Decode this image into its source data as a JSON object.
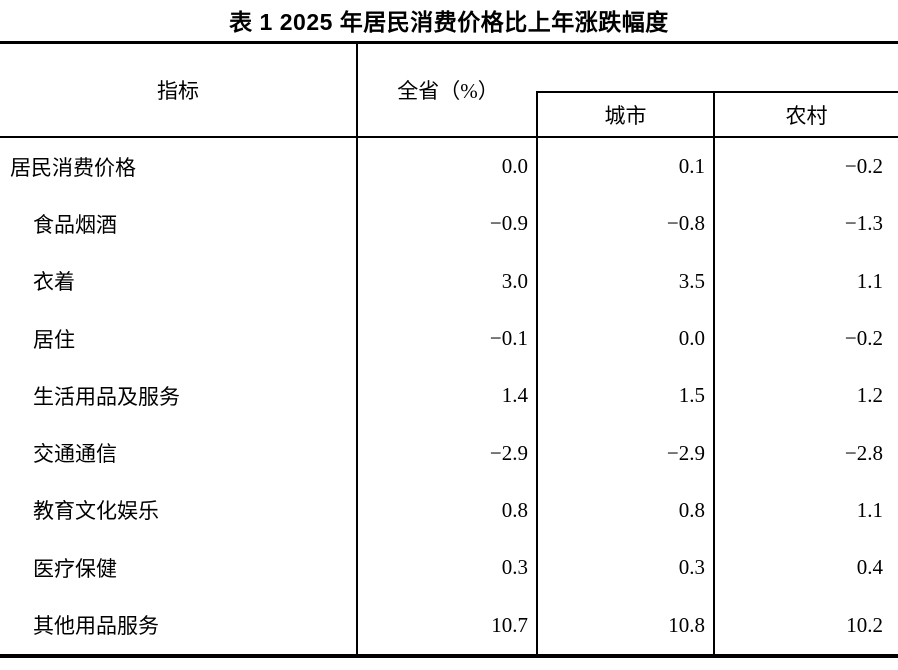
{
  "title": "表 1 2025 年居民消费价格比上年涨跌幅度",
  "table": {
    "headers": {
      "indicator": "指标",
      "province": "全省（%）",
      "city": "城市",
      "rural": "农村"
    },
    "rows": [
      {
        "label": "居民消费价格",
        "province": "0.0",
        "city": "0.1",
        "rural": "−0.2"
      },
      {
        "label": "食品烟酒",
        "province": "−0.9",
        "city": "−0.8",
        "rural": "−1.3"
      },
      {
        "label": "衣着",
        "province": "3.0",
        "city": "3.5",
        "rural": "1.1"
      },
      {
        "label": "居住",
        "province": "−0.1",
        "city": "0.0",
        "rural": "−0.2"
      },
      {
        "label": "生活用品及服务",
        "province": "1.4",
        "city": "1.5",
        "rural": "1.2"
      },
      {
        "label": "交通通信",
        "province": "−2.9",
        "city": "−2.9",
        "rural": "−2.8"
      },
      {
        "label": "教育文化娱乐",
        "province": "0.8",
        "city": "0.8",
        "rural": "1.1"
      },
      {
        "label": "医疗保健",
        "province": "0.3",
        "city": "0.3",
        "rural": "0.4"
      },
      {
        "label": "其他用品服务",
        "province": "10.7",
        "city": "10.8",
        "rural": "10.2"
      }
    ]
  },
  "chart_data": {
    "type": "table",
    "title": "表 1 2025 年居民消费价格比上年涨跌幅度",
    "columns": [
      "指标",
      "全省（%）",
      "城市",
      "农村"
    ],
    "categories": [
      "居民消费价格",
      "食品烟酒",
      "衣着",
      "居住",
      "生活用品及服务",
      "交通通信",
      "教育文化娱乐",
      "医疗保健",
      "其他用品服务"
    ],
    "series": [
      {
        "name": "全省（%）",
        "values": [
          0.0,
          -0.9,
          3.0,
          -0.1,
          1.4,
          -2.9,
          0.8,
          0.3,
          10.7
        ]
      },
      {
        "name": "城市",
        "values": [
          0.1,
          -0.8,
          3.5,
          0.0,
          1.5,
          -2.9,
          0.8,
          0.3,
          10.8
        ]
      },
      {
        "name": "农村",
        "values": [
          -0.2,
          -1.3,
          1.1,
          -0.2,
          1.2,
          -2.8,
          1.1,
          0.4,
          10.2
        ]
      }
    ]
  }
}
